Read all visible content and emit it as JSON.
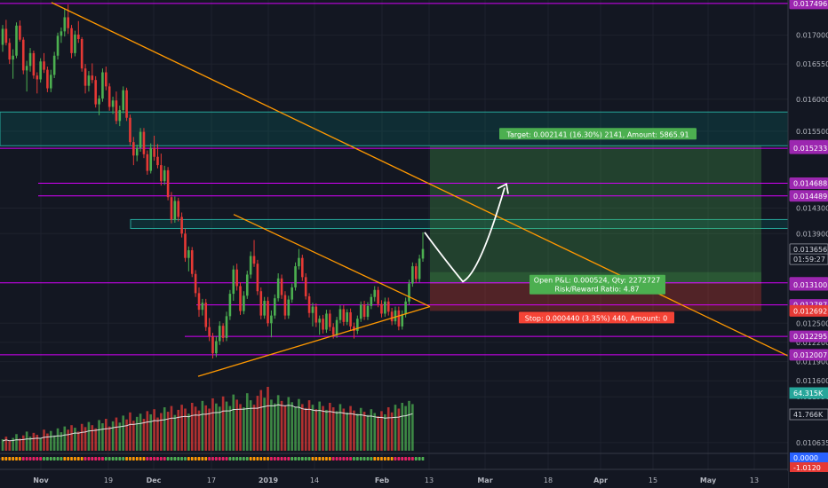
{
  "chart_data": {
    "type": "candlestick",
    "y_axis": {
      "ticks": [
        "0.017000",
        "0.016550",
        "0.016000",
        "0.015500",
        "0.014300",
        "0.013900",
        "0.012500",
        "0.012200",
        "0.011900",
        "0.011600",
        "0.011350",
        "0.010635"
      ],
      "ylim": [
        0.01048,
        0.01755
      ]
    },
    "x_axis": {
      "ticks": [
        "Nov",
        "19",
        "Dec",
        "17",
        "2019",
        "14",
        "Feb",
        "13",
        "Mar",
        "18",
        "Apr",
        "15",
        "May",
        "13"
      ],
      "bold_ticks": [
        "Nov",
        "Dec",
        "2019",
        "Feb",
        "Mar",
        "Apr",
        "May"
      ]
    },
    "price_labels": [
      {
        "text": "0.017496",
        "value": 0.017496,
        "color": "#9c27b0"
      },
      {
        "text": "0.015273",
        "value": 0.015273,
        "color": "#9c27b0"
      },
      {
        "text": "0.015233",
        "value": 0.015233,
        "color": "#9c27b0"
      },
      {
        "text": "0.014688",
        "value": 0.014688,
        "color": "#9c27b0"
      },
      {
        "text": "0.014489",
        "value": 0.014489,
        "color": "#9c27b0"
      },
      {
        "text": "0.013656",
        "value": 0.013656,
        "color": "#131722",
        "text_color": "#d1d4dc",
        "border": "#787b86"
      },
      {
        "text": "01:59:27",
        "value": 0.0135,
        "color": "#131722",
        "text_color": "#d1d4dc",
        "border": "#787b86"
      },
      {
        "text": "0.013132",
        "value": 0.013132,
        "color": "#9c27b0"
      },
      {
        "text": "0.013100",
        "value": 0.0131,
        "color": "#9c27b0"
      },
      {
        "text": "0.012787",
        "value": 0.012787,
        "color": "#9c27b0"
      },
      {
        "text": "0.012692",
        "value": 0.012692,
        "color": "#e53935"
      },
      {
        "text": "0.012295",
        "value": 0.012295,
        "color": "#9c27b0"
      },
      {
        "text": "0.012007",
        "value": 0.012007,
        "color": "#9c27b0"
      }
    ],
    "volume_labels": [
      "64.315K",
      "41.766K"
    ],
    "oscillator_labels": [
      "0.0000",
      "-1.0120"
    ],
    "horizontal_levels": [
      0.017496,
      0.015233,
      0.014688,
      0.014489,
      0.013132,
      0.012787,
      0.012295,
      0.012007
    ],
    "zones": [
      {
        "from": 0.015273,
        "to": 0.0158,
        "color": "teal"
      },
      {
        "from": 0.01398,
        "to": 0.01412,
        "color": "teal"
      }
    ],
    "position": {
      "entry": 0.013132,
      "target": 0.015273,
      "stop": 0.012692,
      "target_text": "Target: 0.002141 (16.30%) 2141, Amount: 5865.91",
      "open_text_line1": "Open P&L: 0.000524, Qty: 2272727",
      "open_text_line2": "Risk/Reward Ratio: 4.87",
      "stop_text": "Stop: 0.000440 (3.35%) 440, Amount: 0"
    },
    "candles_ohlc": [
      [
        0.01685,
        0.01716,
        0.01674,
        0.0171
      ],
      [
        0.0171,
        0.01724,
        0.01684,
        0.01688
      ],
      [
        0.01688,
        0.01695,
        0.01655,
        0.01662
      ],
      [
        0.01662,
        0.01678,
        0.01632,
        0.01668
      ],
      [
        0.01668,
        0.0172,
        0.01664,
        0.01715
      ],
      [
        0.01715,
        0.01723,
        0.0169,
        0.01693
      ],
      [
        0.01693,
        0.01697,
        0.01639,
        0.01645
      ],
      [
        0.01645,
        0.0166,
        0.01612,
        0.01652
      ],
      [
        0.01652,
        0.0168,
        0.01643,
        0.01672
      ],
      [
        0.01672,
        0.01676,
        0.01632,
        0.01637
      ],
      [
        0.01637,
        0.01642,
        0.01609,
        0.01631
      ],
      [
        0.01631,
        0.01664,
        0.01626,
        0.01659
      ],
      [
        0.01659,
        0.01672,
        0.01641,
        0.01646
      ],
      [
        0.01646,
        0.01651,
        0.01611,
        0.01617
      ],
      [
        0.01617,
        0.01646,
        0.01611,
        0.01638
      ],
      [
        0.01638,
        0.01674,
        0.01633,
        0.01668
      ],
      [
        0.01668,
        0.01704,
        0.01662,
        0.01699
      ],
      [
        0.01699,
        0.01712,
        0.01688,
        0.01706
      ],
      [
        0.01706,
        0.01742,
        0.01698,
        0.01728
      ],
      [
        0.01728,
        0.01748,
        0.01702,
        0.01711
      ],
      [
        0.01711,
        0.01716,
        0.01664,
        0.01672
      ],
      [
        0.01672,
        0.01707,
        0.01667,
        0.01701
      ],
      [
        0.01701,
        0.01722,
        0.01688,
        0.01694
      ],
      [
        0.01694,
        0.01697,
        0.01643,
        0.01648
      ],
      [
        0.01648,
        0.01655,
        0.01609,
        0.01621
      ],
      [
        0.01621,
        0.01644,
        0.01612,
        0.01637
      ],
      [
        0.01637,
        0.01656,
        0.01625,
        0.0163
      ],
      [
        0.0163,
        0.01636,
        0.01587,
        0.01592
      ],
      [
        0.01592,
        0.01606,
        0.01575,
        0.01601
      ],
      [
        0.01601,
        0.01648,
        0.01596,
        0.01642
      ],
      [
        0.01642,
        0.01651,
        0.01614,
        0.0162
      ],
      [
        0.0162,
        0.01625,
        0.01582,
        0.01588
      ],
      [
        0.01588,
        0.01604,
        0.01577,
        0.01598
      ],
      [
        0.01598,
        0.01612,
        0.01561,
        0.01566
      ],
      [
        0.01566,
        0.0159,
        0.01558,
        0.01583
      ],
      [
        0.01583,
        0.0162,
        0.01578,
        0.01614
      ],
      [
        0.01614,
        0.01618,
        0.01566,
        0.01571
      ],
      [
        0.01571,
        0.01576,
        0.01528,
        0.01533
      ],
      [
        0.01533,
        0.01541,
        0.01497,
        0.01512
      ],
      [
        0.01512,
        0.01529,
        0.01503,
        0.01524
      ],
      [
        0.01524,
        0.01555,
        0.01518,
        0.01549
      ],
      [
        0.01549,
        0.01555,
        0.01508,
        0.01514
      ],
      [
        0.01514,
        0.0152,
        0.01482,
        0.01488
      ],
      [
        0.01488,
        0.01531,
        0.01484,
        0.01524
      ],
      [
        0.01524,
        0.01543,
        0.01504,
        0.0151
      ],
      [
        0.0151,
        0.0153,
        0.01492,
        0.01497
      ],
      [
        0.01497,
        0.01515,
        0.01465,
        0.01472
      ],
      [
        0.01472,
        0.01496,
        0.01466,
        0.01489
      ],
      [
        0.01489,
        0.01494,
        0.01442,
        0.01447
      ],
      [
        0.01447,
        0.01455,
        0.01406,
        0.01412
      ],
      [
        0.01412,
        0.01448,
        0.01407,
        0.01441
      ],
      [
        0.01441,
        0.01446,
        0.01409,
        0.01416
      ],
      [
        0.01416,
        0.01423,
        0.01384,
        0.0139
      ],
      [
        0.0139,
        0.01398,
        0.01346,
        0.01352
      ],
      [
        0.01352,
        0.0137,
        0.01331,
        0.01364
      ],
      [
        0.01364,
        0.01369,
        0.01322,
        0.01327
      ],
      [
        0.01327,
        0.01333,
        0.01291,
        0.01297
      ],
      [
        0.01297,
        0.01306,
        0.0126,
        0.01271
      ],
      [
        0.01271,
        0.01288,
        0.01262,
        0.01282
      ],
      [
        0.01282,
        0.01288,
        0.01238,
        0.01244
      ],
      [
        0.01244,
        0.01258,
        0.01222,
        0.01229
      ],
      [
        0.01229,
        0.01235,
        0.01195,
        0.01203
      ],
      [
        0.01203,
        0.01229,
        0.01197,
        0.01222
      ],
      [
        0.01222,
        0.01253,
        0.01216,
        0.01246
      ],
      [
        0.01246,
        0.0125,
        0.01221,
        0.01227
      ],
      [
        0.01227,
        0.01268,
        0.01222,
        0.01261
      ],
      [
        0.01261,
        0.01302,
        0.01255,
        0.01296
      ],
      [
        0.01296,
        0.0134,
        0.01285,
        0.01334
      ],
      [
        0.01334,
        0.01343,
        0.01301,
        0.01308
      ],
      [
        0.01308,
        0.01314,
        0.01263,
        0.01269
      ],
      [
        0.01269,
        0.013,
        0.01264,
        0.01293
      ],
      [
        0.01293,
        0.01332,
        0.01288,
        0.01326
      ],
      [
        0.01326,
        0.01362,
        0.0132,
        0.01355
      ],
      [
        0.01355,
        0.0138,
        0.01338,
        0.01343
      ],
      [
        0.01343,
        0.01349,
        0.01294,
        0.013
      ],
      [
        0.013,
        0.01306,
        0.01256,
        0.01262
      ],
      [
        0.01262,
        0.01291,
        0.01257,
        0.01285
      ],
      [
        0.01285,
        0.01291,
        0.01245,
        0.0125
      ],
      [
        0.0125,
        0.0127,
        0.01228,
        0.01262
      ],
      [
        0.01262,
        0.01295,
        0.01257,
        0.01289
      ],
      [
        0.01289,
        0.01328,
        0.01284,
        0.0132
      ],
      [
        0.0132,
        0.01326,
        0.01288,
        0.01294
      ],
      [
        0.01294,
        0.013,
        0.01256,
        0.01262
      ],
      [
        0.01262,
        0.01293,
        0.01257,
        0.01287
      ],
      [
        0.01287,
        0.01312,
        0.01282,
        0.01306
      ],
      [
        0.01306,
        0.01345,
        0.01301,
        0.01339
      ],
      [
        0.01339,
        0.01366,
        0.01334,
        0.01352
      ],
      [
        0.01352,
        0.01357,
        0.01316,
        0.01322
      ],
      [
        0.01322,
        0.01328,
        0.01287,
        0.01292
      ],
      [
        0.01292,
        0.01297,
        0.01259,
        0.01266
      ],
      [
        0.01266,
        0.01282,
        0.01245,
        0.01276
      ],
      [
        0.01276,
        0.01281,
        0.01244,
        0.01251
      ],
      [
        0.01251,
        0.01262,
        0.01232,
        0.01257
      ],
      [
        0.01257,
        0.01263,
        0.01234,
        0.0124
      ],
      [
        0.0124,
        0.01271,
        0.01235,
        0.01265
      ],
      [
        0.01265,
        0.01271,
        0.01238,
        0.01244
      ],
      [
        0.01244,
        0.0125,
        0.01226,
        0.01232
      ],
      [
        0.01232,
        0.0126,
        0.01227,
        0.01255
      ],
      [
        0.01255,
        0.01278,
        0.0125,
        0.01272
      ],
      [
        0.01272,
        0.01278,
        0.01246,
        0.01252
      ],
      [
        0.01252,
        0.01272,
        0.01247,
        0.01267
      ],
      [
        0.01267,
        0.01273,
        0.01239,
        0.01245
      ],
      [
        0.01245,
        0.01251,
        0.01226,
        0.01238
      ],
      [
        0.01238,
        0.01262,
        0.01233,
        0.01257
      ],
      [
        0.01257,
        0.01284,
        0.01252,
        0.01279
      ],
      [
        0.01279,
        0.01285,
        0.01255,
        0.0126
      ],
      [
        0.0126,
        0.01283,
        0.01255,
        0.01277
      ],
      [
        0.01277,
        0.01296,
        0.01272,
        0.01291
      ],
      [
        0.01291,
        0.01308,
        0.01284,
        0.01302
      ],
      [
        0.01302,
        0.01307,
        0.01275,
        0.0128
      ],
      [
        0.0128,
        0.01286,
        0.01259,
        0.01265
      ],
      [
        0.01265,
        0.0129,
        0.0126,
        0.01284
      ],
      [
        0.01284,
        0.0129,
        0.01262,
        0.01268
      ],
      [
        0.01268,
        0.01274,
        0.01247,
        0.01253
      ],
      [
        0.01253,
        0.01276,
        0.01248,
        0.0127
      ],
      [
        0.0127,
        0.01276,
        0.01239,
        0.01245
      ],
      [
        0.01245,
        0.0127,
        0.0124,
        0.01264
      ],
      [
        0.01264,
        0.0129,
        0.01259,
        0.01284
      ],
      [
        0.01284,
        0.01318,
        0.01279,
        0.01312
      ],
      [
        0.01312,
        0.01345,
        0.01307,
        0.01339
      ],
      [
        0.01339,
        0.01344,
        0.01313,
        0.01319
      ],
      [
        0.01319,
        0.01357,
        0.01314,
        0.01351
      ],
      [
        0.01351,
        0.01392,
        0.01346,
        0.01366
      ]
    ],
    "volumes": [
      0.18,
      0.22,
      0.15,
      0.2,
      0.26,
      0.19,
      0.24,
      0.3,
      0.22,
      0.28,
      0.25,
      0.2,
      0.33,
      0.27,
      0.31,
      0.24,
      0.35,
      0.29,
      0.38,
      0.33,
      0.4,
      0.36,
      0.3,
      0.42,
      0.37,
      0.45,
      0.4,
      0.35,
      0.48,
      0.43,
      0.5,
      0.38,
      0.46,
      0.52,
      0.44,
      0.55,
      0.49,
      0.6,
      0.47,
      0.53,
      0.58,
      0.5,
      0.62,
      0.57,
      0.65,
      0.52,
      0.59,
      0.68,
      0.61,
      0.7,
      0.56,
      0.64,
      0.72,
      0.66,
      0.58,
      0.75,
      0.69,
      0.63,
      0.78,
      0.71,
      0.66,
      0.82,
      0.74,
      0.69,
      0.85,
      0.77,
      0.7,
      0.88,
      0.8,
      0.73,
      0.68,
      0.9,
      0.79,
      0.72,
      0.86,
      0.95,
      0.83,
      1.0,
      0.8,
      0.74,
      0.87,
      0.78,
      0.71,
      0.84,
      0.76,
      0.69,
      0.81,
      0.73,
      0.67,
      0.79,
      0.72,
      0.65,
      0.77,
      0.7,
      0.64,
      0.75,
      0.68,
      0.62,
      0.73,
      0.66,
      0.6,
      0.7,
      0.63,
      0.58,
      0.67,
      0.61,
      0.56,
      0.65,
      0.59,
      0.54,
      0.62,
      0.57,
      0.68,
      0.6,
      0.72,
      0.66,
      0.75,
      0.7,
      0.78,
      0.73
    ]
  }
}
